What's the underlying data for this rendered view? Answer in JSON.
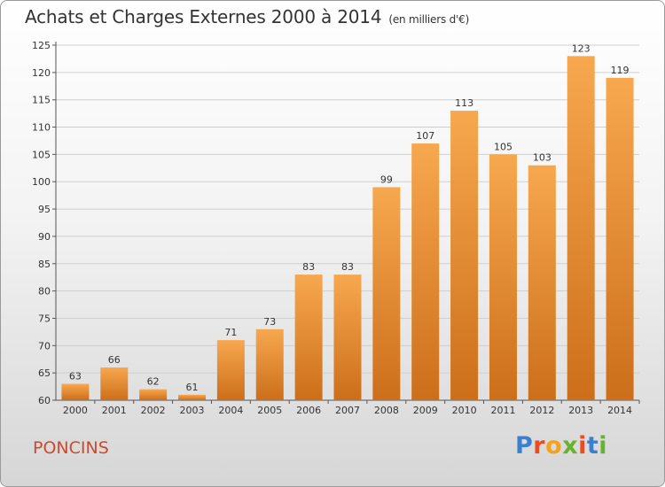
{
  "title": "Achats et Charges Externes 2000 à 2014",
  "unit": "(en milliers d'€)",
  "commune": "PONCINS",
  "logo": {
    "text": "Proxiti",
    "letters": [
      {
        "ch": "P",
        "color": "#3a7fd0"
      },
      {
        "ch": "r",
        "color": "#e84c1f"
      },
      {
        "ch": "o",
        "color": "#f5a21a"
      },
      {
        "ch": "x",
        "color": "#66b32e"
      },
      {
        "ch": "i",
        "color": "#e84c1f"
      },
      {
        "ch": "t",
        "color": "#3a7fd0"
      },
      {
        "ch": "i",
        "color": "#66b32e"
      }
    ]
  },
  "chart_data": {
    "type": "bar",
    "categories": [
      "2000",
      "2001",
      "2002",
      "2003",
      "2004",
      "2005",
      "2006",
      "2007",
      "2008",
      "2009",
      "2010",
      "2011",
      "2012",
      "2013",
      "2014"
    ],
    "values": [
      63,
      66,
      62,
      61,
      71,
      73,
      83,
      83,
      99,
      107,
      113,
      105,
      103,
      123,
      119
    ],
    "ylim": [
      60,
      125
    ],
    "yticks": [
      60,
      65,
      70,
      75,
      80,
      85,
      90,
      95,
      100,
      105,
      110,
      115,
      120,
      125
    ],
    "grid": true,
    "bar_color_top": "#f7a84f",
    "bar_color_bottom": "#cc6e1a"
  }
}
